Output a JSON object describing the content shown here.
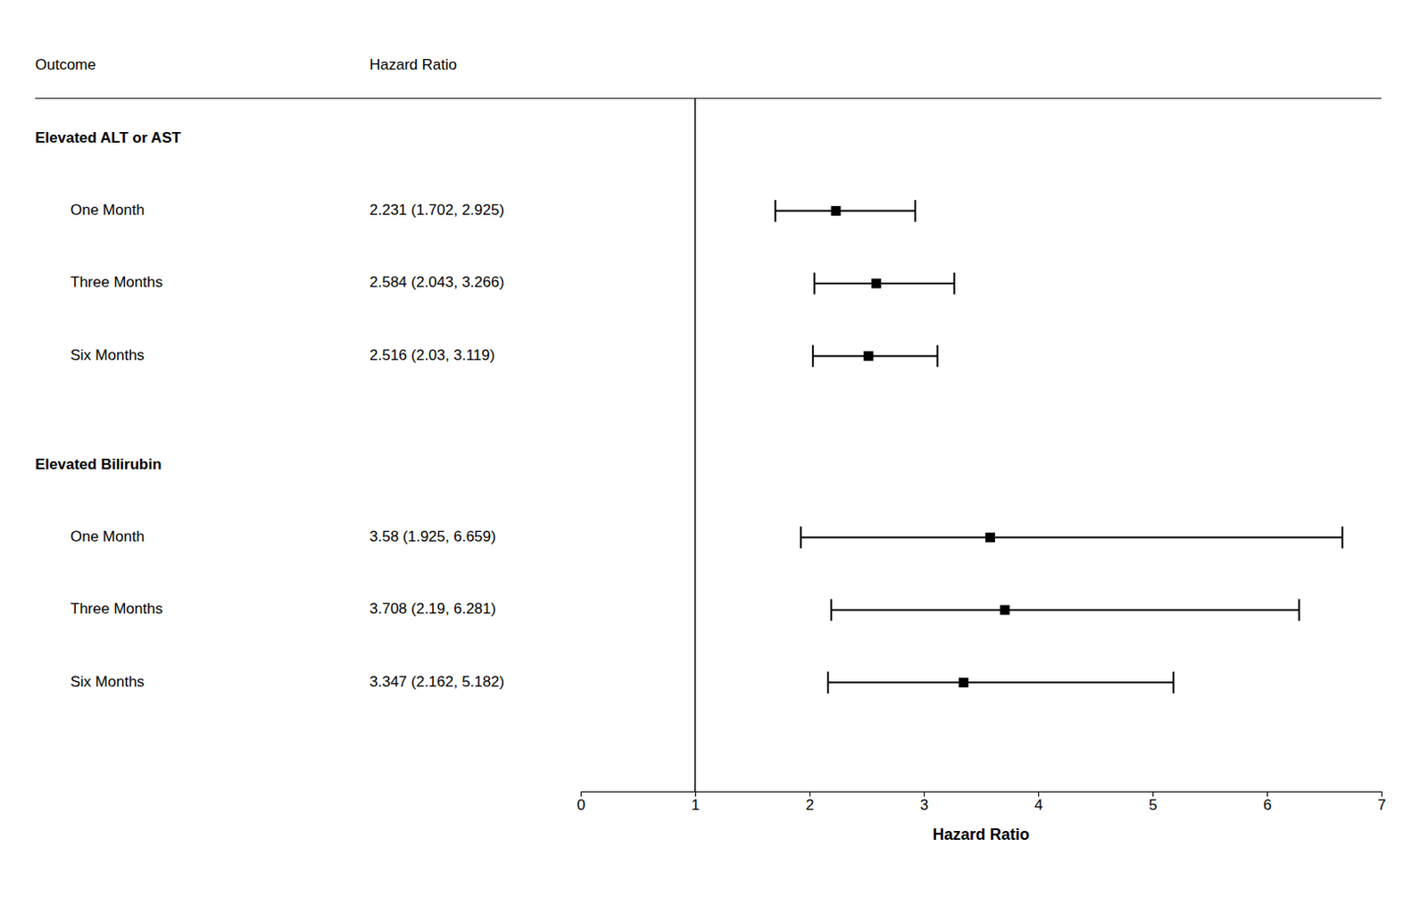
{
  "chart_data": {
    "type": "forest",
    "title": "",
    "xlabel": "Hazard Ratio",
    "column_headers": [
      "Outcome",
      "Hazard Ratio"
    ],
    "groups": [
      {
        "name": "Elevated ALT or AST",
        "categories": [
          "One Month",
          "Three Months",
          "Six Months"
        ],
        "values": [
          2.231,
          2.584,
          2.516
        ],
        "lower": [
          1.702,
          2.043,
          2.03
        ],
        "upper": [
          2.925,
          3.266,
          3.119
        ],
        "value_labels": [
          "2.231 (1.702, 2.925)",
          "2.584 (2.043, 3.266)",
          "2.516 (2.03, 3.119)"
        ]
      },
      {
        "name": "Elevated Bilirubin",
        "categories": [
          "One Month",
          "Three Months",
          "Six Months"
        ],
        "values": [
          3.58,
          3.708,
          3.347
        ],
        "lower": [
          1.925,
          2.19,
          2.162
        ],
        "upper": [
          6.659,
          6.281,
          5.182
        ],
        "value_labels": [
          "3.58 (1.925, 6.659)",
          "3.708 (2.19, 6.281)",
          "3.347 (2.162, 5.182)"
        ]
      }
    ],
    "reference_line": 1,
    "xlim": [
      0,
      7
    ],
    "xticks": [
      0,
      1,
      2,
      3,
      4,
      5,
      6,
      7
    ],
    "color": "#000000"
  }
}
